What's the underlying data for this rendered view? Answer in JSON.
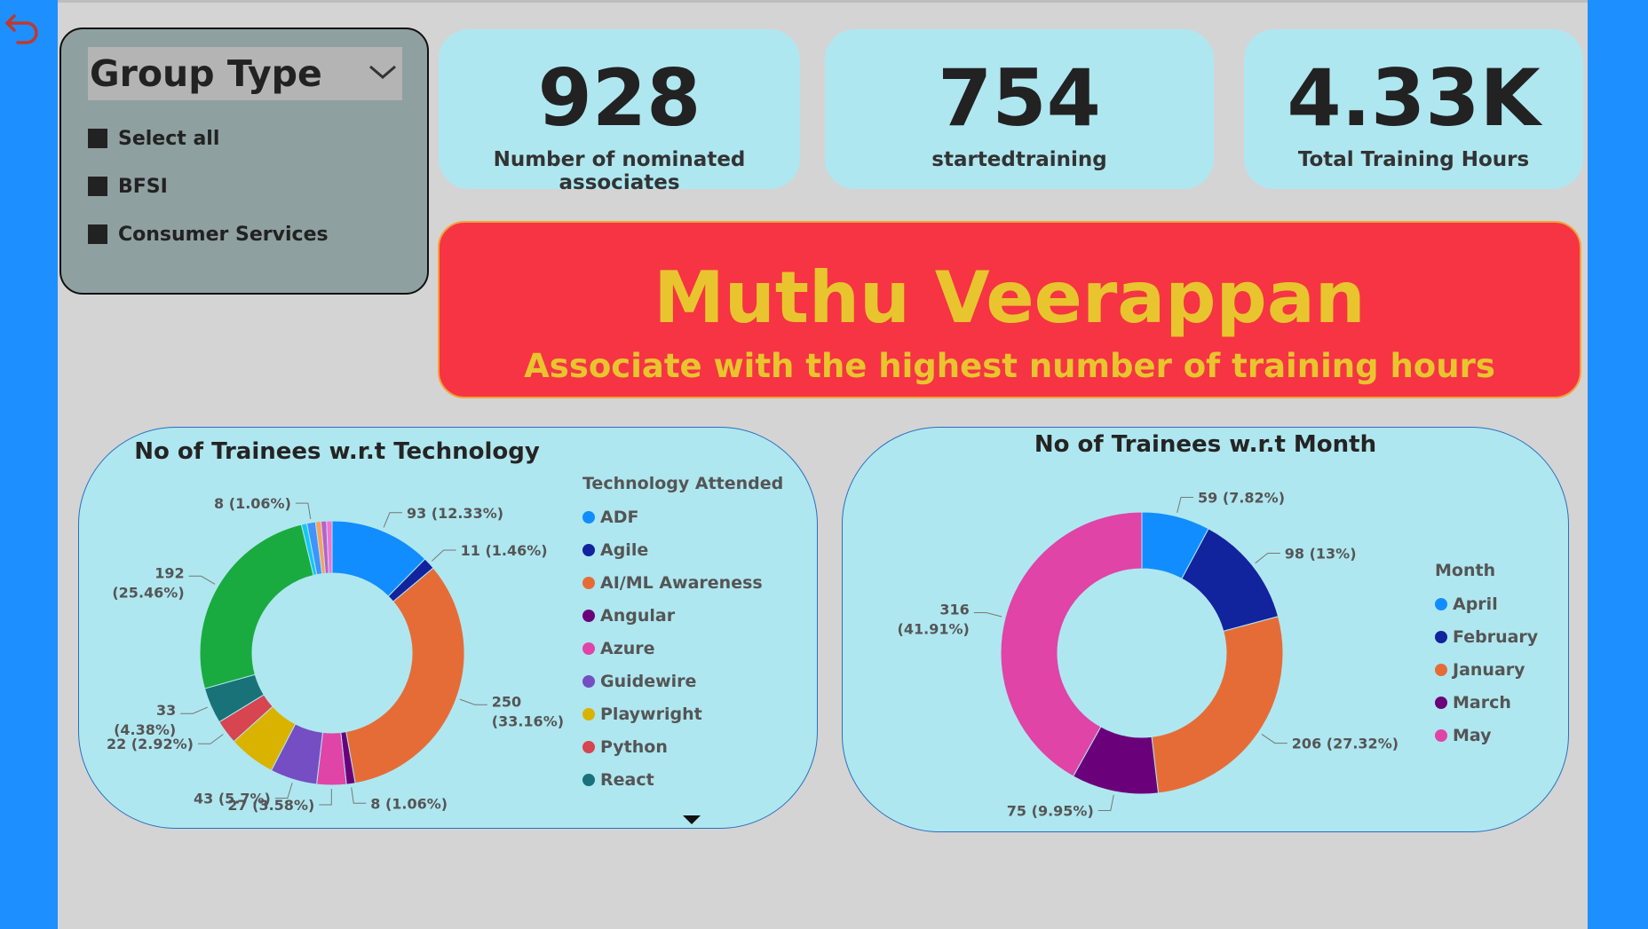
{
  "slicer": {
    "title": "Group Type",
    "items": [
      {
        "label": "Select all"
      },
      {
        "label": "BFSI"
      },
      {
        "label": "Consumer Services"
      }
    ]
  },
  "kpis": [
    {
      "value": "928",
      "label": "Number of nominated associates"
    },
    {
      "value": "754",
      "label": "startedtraining"
    },
    {
      "value": "4.33K",
      "label": "Total Training Hours"
    }
  ],
  "banner": {
    "name": "Muthu Veerappan",
    "subtitle": "Associate with the highest number of training hours"
  },
  "colors": {
    "sidebar": "#1e8fff",
    "kpi_card": "#afe7f0",
    "banner_bg": "#f63443",
    "banner_text": "#e8c52e"
  },
  "icons": {
    "back": "undo-arrow-icon",
    "slicer_dropdown": "chevron-down-icon",
    "legend_more": "triangle-down-icon"
  },
  "chart_data": [
    {
      "type": "pie",
      "title": "No of Trainees w.r.t Technology",
      "legend_title": "Technology Attended",
      "legend_position": "right",
      "donut": true,
      "slices": [
        {
          "name": "ADF",
          "value": 93,
          "label_value": "93",
          "label_pct": "(12.33%)",
          "color": "#118dff"
        },
        {
          "name": "Agile",
          "value": 11,
          "label_value": "11",
          "label_pct": "(1.46%)",
          "color": "#12239e"
        },
        {
          "name": "AI/ML Awareness",
          "value": 250,
          "label_value": "250",
          "label_pct": "(33.16%)",
          "color": "#e66c37"
        },
        {
          "name": "Angular",
          "value": 8,
          "label_value": "8",
          "label_pct": "(1.06%)",
          "color": "#6b007b"
        },
        {
          "name": "Azure",
          "value": 27,
          "label_value": "27",
          "label_pct": "(3.58%)",
          "color": "#e044a7"
        },
        {
          "name": "Guidewire",
          "value": 43,
          "label_value": "43",
          "label_pct": "(5.7%)",
          "color": "#744ec2"
        },
        {
          "name": "Playwright",
          "value": 43,
          "label_value": "",
          "label_pct": "",
          "color": "#d9b300"
        },
        {
          "name": "Python",
          "value": 22,
          "label_value": "22",
          "label_pct": "(2.92%)",
          "color": "#d64550"
        },
        {
          "name": "React",
          "value": 33,
          "label_value": "33",
          "label_pct": "(4.38%)",
          "color": "#197278"
        },
        {
          "name": "",
          "value": 192,
          "label_value": "192",
          "label_pct": "(25.46%)",
          "color": "#1aab40"
        },
        {
          "name": "",
          "value": 5,
          "label_value": "",
          "label_pct": "",
          "color": "#15c6f4"
        },
        {
          "name": "",
          "value": 8,
          "label_value": "8",
          "label_pct": "(1.06%)",
          "color": "#4092ff"
        },
        {
          "name": "",
          "value": 5,
          "label_value": "",
          "label_pct": "",
          "color": "#ffa058"
        },
        {
          "name": "",
          "value": 5,
          "label_value": "",
          "label_pct": "",
          "color": "#be5dc9"
        },
        {
          "name": "",
          "value": 5,
          "label_value": "",
          "label_pct": "",
          "color": "#f472d0"
        }
      ],
      "legend": [
        "ADF",
        "Agile",
        "AI/ML Awareness",
        "Angular",
        "Azure",
        "Guidewire",
        "Playwright",
        "Python",
        "React"
      ]
    },
    {
      "type": "pie",
      "title": "No of Trainees w.r.t Month",
      "legend_title": "Month",
      "legend_position": "right",
      "donut": true,
      "slices": [
        {
          "name": "April",
          "value": 59,
          "label_value": "59",
          "label_pct": "(7.82%)",
          "color": "#118dff"
        },
        {
          "name": "February",
          "value": 98,
          "label_value": "98",
          "label_pct": "(13%)",
          "color": "#12239e"
        },
        {
          "name": "January",
          "value": 206,
          "label_value": "206",
          "label_pct": "(27.32%)",
          "color": "#e66c37"
        },
        {
          "name": "March",
          "value": 75,
          "label_value": "75",
          "label_pct": "(9.95%)",
          "color": "#6b007b"
        },
        {
          "name": "May",
          "value": 316,
          "label_value": "316",
          "label_pct": "(41.91%)",
          "color": "#e044a7"
        }
      ],
      "legend": [
        "April",
        "February",
        "January",
        "March",
        "May"
      ]
    }
  ]
}
